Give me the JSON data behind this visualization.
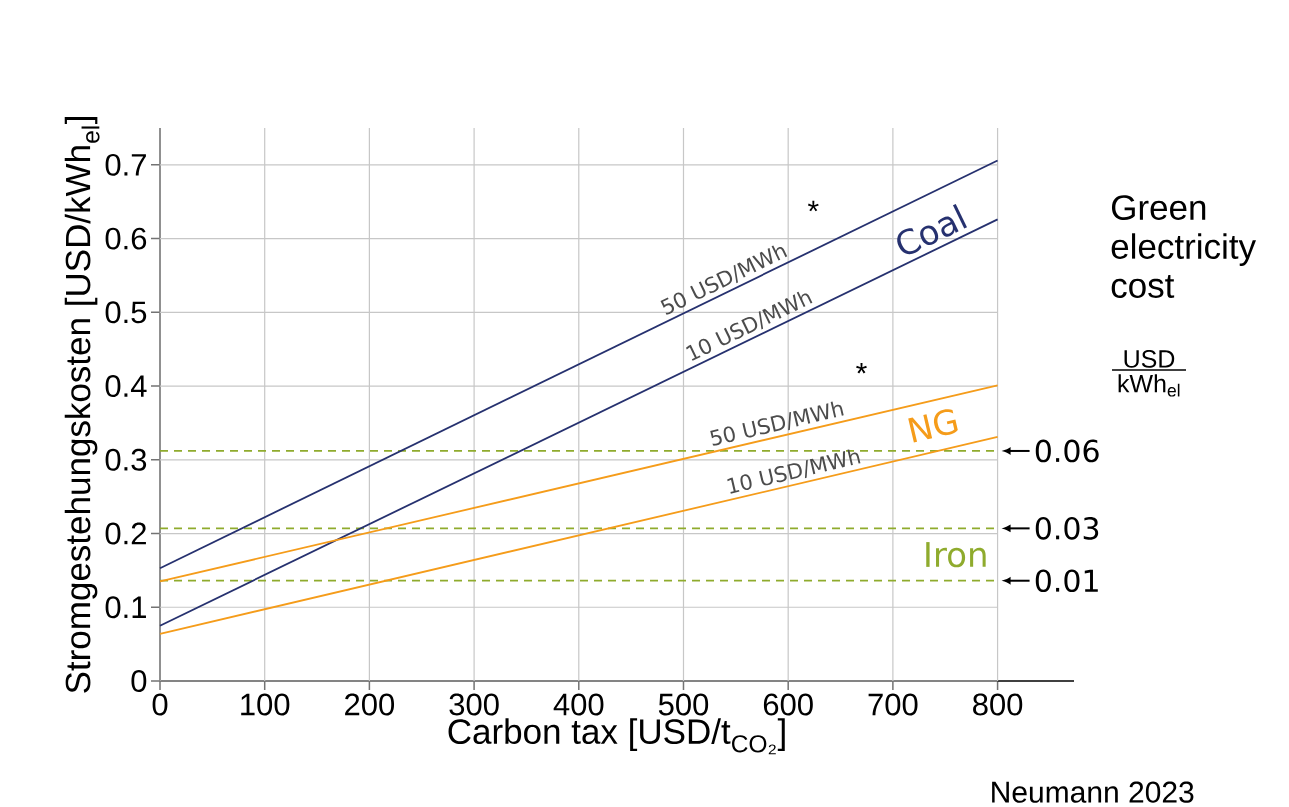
{
  "chart_data": {
    "type": "line",
    "xlabel": "Carbon tax [USD/t$_{CO₂}$]",
    "ylabel": "Stromgestehungskosten [USD/kWh$_{el}$]",
    "x": [
      0,
      800
    ],
    "series": [
      {
        "name": "50 USD/MWh",
        "color": "#26316f",
        "values": [
          0.153,
          0.706
        ]
      },
      {
        "name": "10 USD/MWh",
        "color": "#26316f",
        "values": [
          0.075,
          0.626
        ]
      },
      {
        "name": "50 USD/MWh",
        "color": "#f59c1a",
        "values": [
          0.135,
          0.401
        ]
      },
      {
        "name": "10 USD/MWh",
        "color": "#f59c1a",
        "values": [
          0.064,
          0.331
        ]
      }
    ],
    "xlim": [
      0,
      873
    ],
    "ylim": [
      0,
      0.75
    ],
    "xticks": [
      0,
      100,
      200,
      300,
      400,
      500,
      600,
      700,
      800
    ],
    "yticks": [
      0,
      0.1,
      0.2,
      0.3,
      0.4,
      0.5,
      0.6,
      0.7
    ],
    "grid": true,
    "marker": "none",
    "line_style": "solid",
    "ref_lines": [
      {
        "axis": "y",
        "value": 0.312,
        "color": "#8fab2d",
        "line_style": "dashed"
      },
      {
        "axis": "y",
        "value": 0.207,
        "color": "#8fab2d",
        "line_style": "dashed"
      },
      {
        "axis": "y",
        "value": 0.136,
        "color": "#8fab2d",
        "line_style": "dashed"
      }
    ],
    "annotations": [
      "Coal",
      "NG",
      "Iron",
      "*",
      "*",
      "Green electricity cost",
      "USD",
      "kWh$_{el}$",
      "Neumann 2023",
      "0.06",
      "0.03",
      "0.01"
    ]
  }
}
